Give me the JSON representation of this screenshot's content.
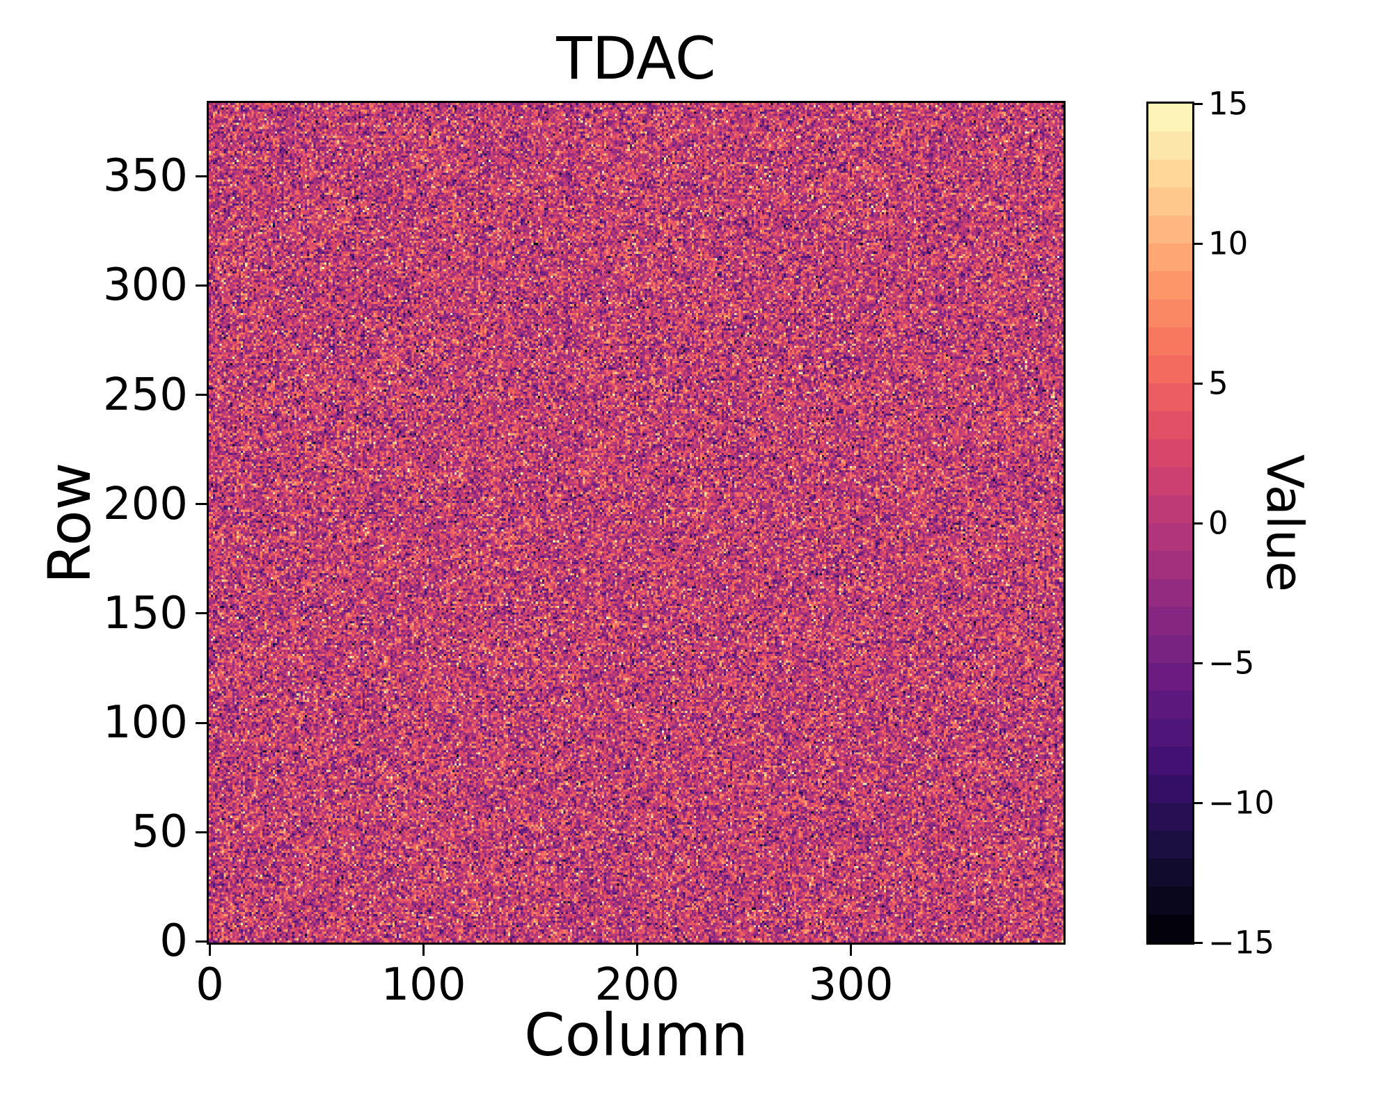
{
  "figure": {
    "title": "TDAC",
    "background_color": "#ffffff",
    "text_color": "#000000"
  },
  "chart_data": {
    "type": "heatmap",
    "title": "TDAC",
    "xlabel": "Column",
    "ylabel": "Row",
    "colorbar_label": "Value",
    "x_range": [
      0,
      400
    ],
    "y_range": [
      0,
      384
    ],
    "value_range": [
      -15,
      15
    ],
    "x_ticks": [
      {
        "value": 0,
        "label": "0"
      },
      {
        "value": 100,
        "label": "100"
      },
      {
        "value": 200,
        "label": "200"
      },
      {
        "value": 300,
        "label": "300"
      }
    ],
    "y_ticks": [
      {
        "value": 0,
        "label": "0"
      },
      {
        "value": 50,
        "label": "50"
      },
      {
        "value": 100,
        "label": "100"
      },
      {
        "value": 150,
        "label": "150"
      },
      {
        "value": 200,
        "label": "200"
      },
      {
        "value": 250,
        "label": "250"
      },
      {
        "value": 300,
        "label": "300"
      },
      {
        "value": 350,
        "label": "350"
      }
    ],
    "colorbar_ticks": [
      {
        "value": 15,
        "label": "15"
      },
      {
        "value": 10,
        "label": "10"
      },
      {
        "value": 5,
        "label": "5"
      },
      {
        "value": 0,
        "label": "0"
      },
      {
        "value": -5,
        "label": "−5"
      },
      {
        "value": -10,
        "label": "−10"
      },
      {
        "value": -15,
        "label": "−15"
      }
    ],
    "colormap": {
      "name": "magma",
      "discrete_levels": 30,
      "stops": [
        "#000004",
        "#140e36",
        "#3b0f70",
        "#641a80",
        "#8c2981",
        "#b73779",
        "#de4968",
        "#f7705c",
        "#fe9f6d",
        "#fecf92",
        "#fcfdbf"
      ]
    },
    "grid": false,
    "legend": null,
    "data_summary": {
      "description": "Per-pixel TDAC trim values over a 400-column x 384-row pixel matrix; random speckle, bulk near 0 (magenta) with orange/yellow high-value and dark low-value outliers",
      "rows": 384,
      "cols": 400,
      "distribution": "gaussian",
      "mean": 0.5,
      "sigma": 4.5,
      "values_are_integers": true,
      "clip": [
        -15,
        15
      ],
      "seed": 42
    }
  }
}
